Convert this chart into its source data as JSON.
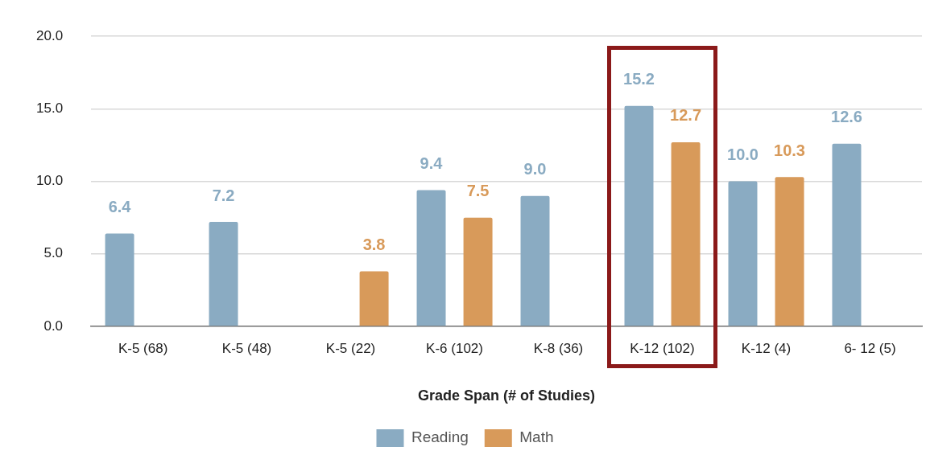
{
  "chart_data": {
    "type": "bar",
    "xlabel": "Grade Span (# of Studies)",
    "categories": [
      "K-5 (68)",
      "K-5 (48)",
      "K-5 (22)",
      "K-6 (102)",
      "K-8 (36)",
      "K-12 (102)",
      "K-12 (4)",
      "6- 12 (5)"
    ],
    "series": [
      {
        "name": "Reading",
        "color": "#8aabc2",
        "values": [
          6.4,
          7.2,
          null,
          9.4,
          9.0,
          15.2,
          10.0,
          12.6
        ],
        "value_labels": [
          "6.4",
          "7.2",
          null,
          "9.4",
          "9.0",
          "15.2",
          "10.0",
          "12.6"
        ]
      },
      {
        "name": "Math",
        "color": "#d89a5a",
        "values": [
          null,
          null,
          3.8,
          7.5,
          null,
          12.7,
          10.3,
          null
        ],
        "value_labels": [
          null,
          null,
          "3.8",
          "7.5",
          null,
          "12.7",
          "10.3",
          null
        ]
      }
    ],
    "ylim": [
      0,
      20
    ],
    "yticks": [
      {
        "value": 0,
        "label": "0.0"
      },
      {
        "value": 5,
        "label": "5.0"
      },
      {
        "value": 10,
        "label": "10.0"
      },
      {
        "value": 15,
        "label": "15.0"
      },
      {
        "value": 20,
        "label": "20.0"
      }
    ],
    "grid": "y",
    "legend": "bottom",
    "data_labels": true
  }
}
